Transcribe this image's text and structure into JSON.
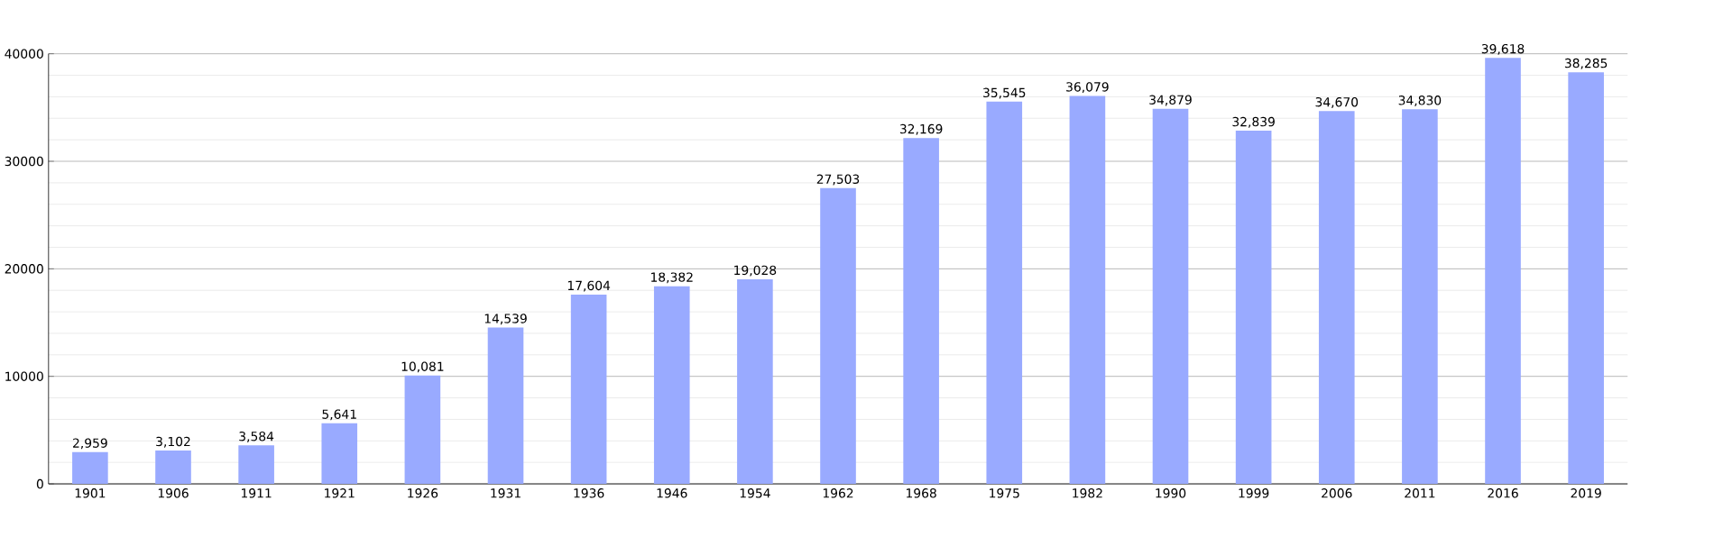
{
  "chart_data": {
    "type": "bar",
    "categories": [
      "1901",
      "1906",
      "1911",
      "1921",
      "1926",
      "1931",
      "1936",
      "1946",
      "1954",
      "1962",
      "1968",
      "1975",
      "1982",
      "1990",
      "1999",
      "2006",
      "2011",
      "2016",
      "2019"
    ],
    "values": [
      2959,
      3102,
      3584,
      5641,
      10081,
      14539,
      17604,
      18382,
      19028,
      27503,
      32169,
      35545,
      36079,
      34879,
      32839,
      34670,
      34830,
      39618,
      38285
    ],
    "value_labels": [
      "2,959",
      "3,102",
      "3,584",
      "5,641",
      "10,081",
      "14,539",
      "17,604",
      "18,382",
      "19,028",
      "27,503",
      "32,169",
      "35,545",
      "36,079",
      "34,879",
      "32,839",
      "34,670",
      "34,830",
      "39,618",
      "38,285"
    ],
    "color": "#99aaff",
    "ylim": [
      0,
      40000
    ],
    "yticks": [
      0,
      10000,
      20000,
      30000,
      40000
    ],
    "grid": "y"
  }
}
